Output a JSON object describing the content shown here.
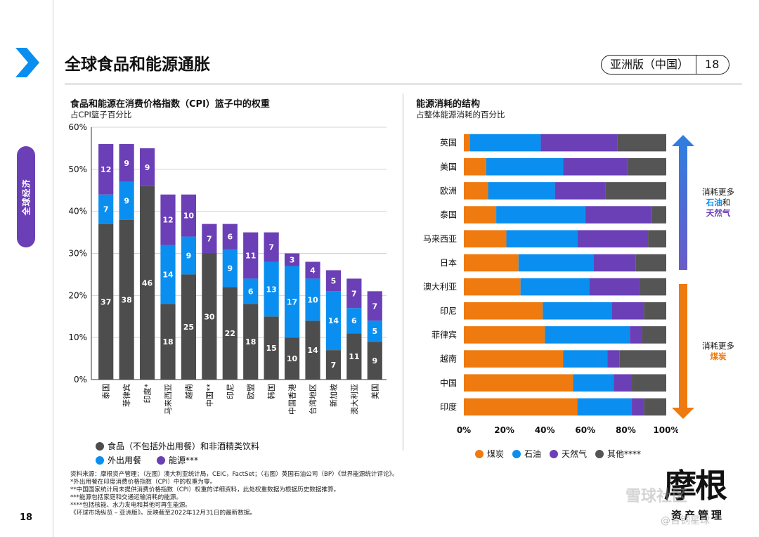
{
  "page": {
    "title": "全球食品和能源通胀",
    "edition": "亚洲版（中国）",
    "page_number": "18",
    "page_number_left": "18",
    "side_tab": "全球经济"
  },
  "colors": {
    "food": "#4d4d4d",
    "dining": "#0a8ff0",
    "energy": "#6b3fb6",
    "coal": "#ef7a0f",
    "oil": "#0a8ff0",
    "gas": "#6b3fb6",
    "other": "#555555",
    "brand": "#0a8ff0",
    "arrow_up": "#2f7fe0",
    "arrow_down": "#ef7a0f"
  },
  "chart_data": [
    {
      "type": "bar",
      "stacked": true,
      "title": "食品和能源在消费价格指数（CPI）篮子中的权重",
      "subtitle": "占CPI篮子百分比",
      "categories": [
        "泰国",
        "菲律宾",
        "印度*",
        "马来西亚",
        "越南",
        "中国**",
        "印尼",
        "欧盟",
        "韩国",
        "中国香港",
        "台湾地区",
        "新加坡",
        "澳大利亚",
        "美国"
      ],
      "series": [
        {
          "name": "食品（不包括外出用餐）和非酒精类饮料",
          "values": [
            37,
            38,
            46,
            18,
            25,
            30,
            22,
            18,
            15,
            10,
            14,
            7,
            11,
            9
          ]
        },
        {
          "name": "外出用餐",
          "values": [
            7,
            9,
            0,
            14,
            9,
            0,
            9,
            6,
            13,
            17,
            10,
            14,
            6,
            5
          ]
        },
        {
          "name": "能源***",
          "values": [
            12,
            9,
            9,
            12,
            10,
            7,
            6,
            11,
            7,
            3,
            4,
            5,
            7,
            7
          ]
        }
      ],
      "labels": [
        [
          "37",
          "38",
          "46",
          "18",
          "25",
          "30",
          "22",
          "18",
          "15",
          "10",
          "14",
          "7",
          "11",
          "9"
        ],
        [
          "7",
          "9",
          "",
          "14",
          "9",
          "",
          "9",
          "6",
          "13",
          "17",
          "10",
          "14",
          "6",
          "5"
        ],
        [
          "12",
          "9",
          "9",
          "12",
          "10",
          "7",
          "6",
          "11",
          "7",
          "3",
          "4",
          "5",
          "7",
          "7"
        ]
      ],
      "yticks": [
        "0%",
        "10%",
        "20%",
        "30%",
        "40%",
        "50%",
        "60%"
      ],
      "ylim": [
        0,
        60
      ]
    },
    {
      "type": "bar",
      "orientation": "horizontal",
      "stacked": true,
      "title": "能源消耗的结构",
      "subtitle": "占整体能源消耗的百分比",
      "categories": [
        "英国",
        "美国",
        "欧洲",
        "泰国",
        "马来西亚",
        "日本",
        "澳大利亚",
        "印尼",
        "菲律宾",
        "越南",
        "中国",
        "印度"
      ],
      "series": [
        {
          "name": "煤炭",
          "values": [
            3,
            11,
            12,
            16,
            21,
            27,
            28,
            39,
            40,
            49,
            54,
            56
          ]
        },
        {
          "name": "石油",
          "values": [
            35,
            38,
            33,
            44,
            35,
            37,
            34,
            34,
            42,
            22,
            20,
            27
          ]
        },
        {
          "name": "天然气",
          "values": [
            38,
            32,
            25,
            33,
            35,
            21,
            25,
            16,
            6,
            6,
            9,
            6
          ]
        },
        {
          "name": "其他****",
          "values": [
            24,
            19,
            30,
            7,
            9,
            15,
            13,
            11,
            12,
            23,
            17,
            11
          ]
        }
      ],
      "xticks": [
        "0%",
        "20%",
        "40%",
        "60%",
        "80%",
        "100%"
      ],
      "xlim": [
        0,
        100
      ]
    }
  ],
  "right_annotation": {
    "up_line1": "消耗更多",
    "up_line2a": "石油",
    "up_line2b": "和",
    "up_line3": "天然气",
    "down_line1": "消耗更多",
    "down_line2": "煤炭"
  },
  "notes": [
    "资料来源：摩根资产管理；（左图）澳大利亚统计局，CEIC，FactSet；（右图）英国石油公司（BP）《世界能源统计评论》。",
    "*外出用餐在印度消费价格指数（CPI）中的权重为零。",
    "**中国国家统计局未提供消费价格指数（CPI）权重的详细资料，此处权重数据为根据历史数据推算。",
    "***能源包括家庭和交通运输消耗的能源。",
    "****包括核能、水力发电和其他可再生能源。",
    "《环球市场纵览 – 亚洲版》。反映截至2022年12月31日的最新数据。"
  ],
  "logo": {
    "text": "摩根",
    "sub": "资产管理"
  },
  "watermark": {
    "text": "雪球社区",
    "sub": "@晋铜星球"
  }
}
